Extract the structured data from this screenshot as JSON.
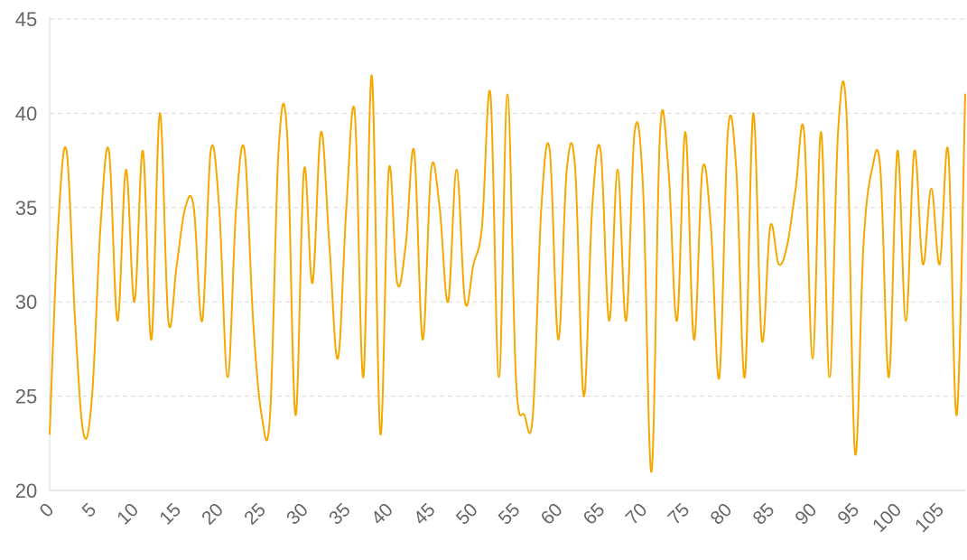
{
  "chart_data": {
    "type": "line",
    "title": "",
    "xlabel": "",
    "ylabel": "",
    "x_ticks": [
      0,
      5,
      10,
      15,
      20,
      25,
      30,
      35,
      40,
      45,
      50,
      55,
      60,
      65,
      70,
      75,
      80,
      85,
      90,
      95,
      100,
      105
    ],
    "y_ticks": [
      20,
      25,
      30,
      35,
      40,
      45
    ],
    "xlim": [
      0,
      108
    ],
    "ylim": [
      20,
      45
    ],
    "grid": "horizontal-dashed",
    "legend": "none",
    "series": [
      {
        "color": "#f5a800",
        "values": [
          23,
          34,
          38,
          29,
          23,
          25,
          34,
          38,
          29,
          37,
          30,
          38,
          28,
          40,
          29,
          32,
          35,
          35,
          29,
          38,
          35,
          26,
          35,
          38,
          29,
          24,
          24,
          38,
          39,
          24,
          37,
          31,
          39,
          33,
          27,
          35,
          40,
          26,
          42,
          23,
          37,
          31,
          33,
          38,
          28,
          37,
          35,
          30,
          37,
          30,
          32,
          34,
          41,
          26,
          41,
          26,
          24,
          24,
          35,
          38,
          28,
          37,
          37,
          25,
          35,
          38,
          29,
          37,
          29,
          39,
          36,
          21,
          39,
          37,
          29,
          39,
          28,
          37,
          34,
          26,
          39,
          37,
          26,
          40,
          28,
          34,
          32,
          33,
          36,
          39,
          27,
          39,
          26,
          39,
          40,
          22,
          33,
          37,
          37,
          26,
          38,
          29,
          38,
          32,
          36,
          32,
          38,
          24,
          41
        ]
      }
    ]
  }
}
